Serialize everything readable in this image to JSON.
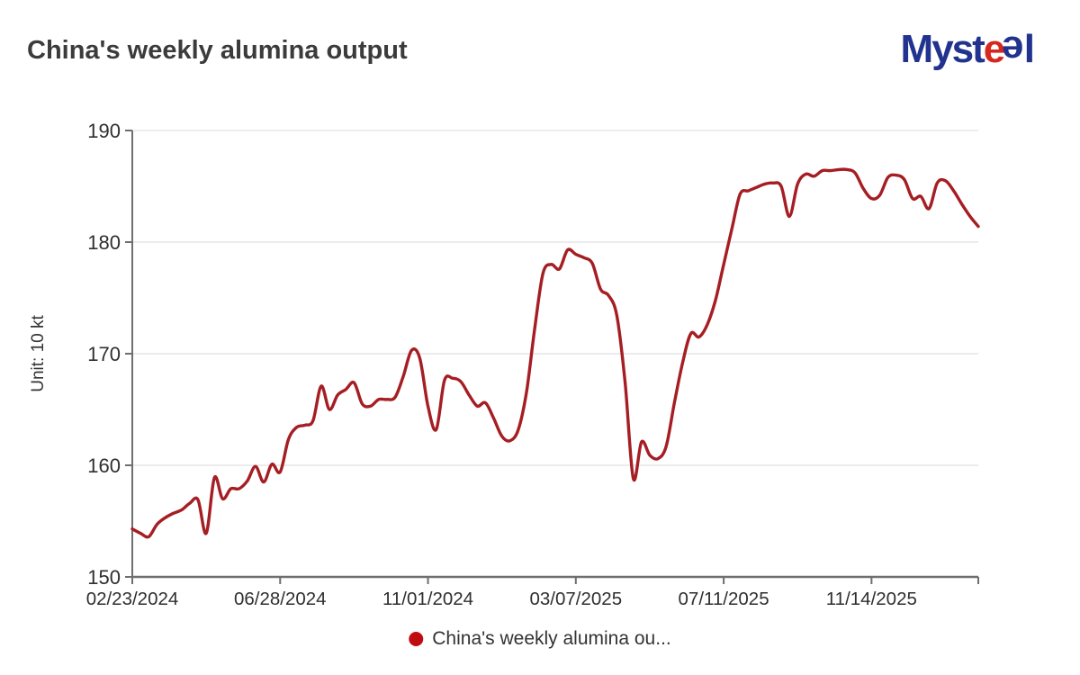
{
  "header": {
    "logo": {
      "p1": "Myst",
      "p2": "e",
      "p3": "e",
      "p4": "l",
      "blue": "#21338e",
      "red": "#d6281e"
    }
  },
  "legend": {
    "label": "China's weekly alumina ou..."
  },
  "chart_data": {
    "type": "line",
    "title": "China's weekly alumina output",
    "unit_label": "Unit: 10 kt",
    "series_name": "China's weekly alumina output",
    "line_color": "#a51e23",
    "legend_dot_color": "#c00c10",
    "grid_color": "#e5e5e8",
    "axis_color": "#6e6e6e",
    "tick_text_color": "#2f2f2f",
    "ylim": [
      150,
      190
    ],
    "y_ticks": [
      150,
      160,
      170,
      180,
      190
    ],
    "x_tick_indices": [
      0,
      18,
      36,
      54,
      72,
      90
    ],
    "x_tick_labels": [
      "02/23/2024",
      "06/28/2024",
      "11/01/2024",
      "03/07/2025",
      "07/11/2025",
      "11/14/2025"
    ],
    "grid_on": true,
    "legend_position": "bottom-center",
    "dates": [
      "02/23/2024",
      "03/01/2024",
      "03/08/2024",
      "03/15/2024",
      "03/22/2024",
      "03/29/2024",
      "04/05/2024",
      "04/12/2024",
      "04/19/2024",
      "04/26/2024",
      "05/03/2024",
      "05/10/2024",
      "05/17/2024",
      "05/24/2024",
      "05/31/2024",
      "06/07/2024",
      "06/14/2024",
      "06/21/2024",
      "06/28/2024",
      "07/05/2024",
      "07/12/2024",
      "07/19/2024",
      "07/26/2024",
      "08/02/2024",
      "08/09/2024",
      "08/16/2024",
      "08/23/2024",
      "08/30/2024",
      "09/06/2024",
      "09/13/2024",
      "09/20/2024",
      "09/27/2024",
      "10/04/2024",
      "10/11/2024",
      "10/18/2024",
      "10/25/2024",
      "11/01/2024",
      "11/08/2024",
      "11/15/2024",
      "11/22/2024",
      "11/29/2024",
      "12/06/2024",
      "12/13/2024",
      "12/20/2024",
      "12/27/2024",
      "01/03/2025",
      "01/10/2025",
      "01/17/2025",
      "01/24/2025",
      "01/31/2025",
      "02/07/2025",
      "02/14/2025",
      "02/21/2025",
      "02/28/2025",
      "03/07/2025",
      "03/14/2025",
      "03/21/2025",
      "03/28/2025",
      "04/04/2025",
      "04/11/2025",
      "04/18/2025",
      "04/25/2025",
      "05/02/2025",
      "05/09/2025",
      "05/16/2025",
      "05/23/2025",
      "05/30/2025",
      "06/06/2025",
      "06/13/2025",
      "06/20/2025",
      "06/27/2025",
      "07/04/2025",
      "07/11/2025",
      "07/18/2025",
      "07/25/2025",
      "08/01/2025",
      "08/08/2025",
      "08/15/2025",
      "08/22/2025",
      "08/29/2025",
      "09/05/2025",
      "09/12/2025",
      "09/19/2025",
      "09/26/2025",
      "10/03/2025",
      "10/10/2025",
      "10/17/2025",
      "10/24/2025",
      "10/31/2025",
      "11/07/2025",
      "11/14/2025",
      "11/21/2025",
      "11/28/2025",
      "12/05/2025",
      "12/12/2025",
      "12/19/2025",
      "12/26/2025",
      "01/02/2026",
      "01/09/2026",
      "01/16/2026",
      "01/23/2026",
      "01/30/2026",
      "02/06/2026",
      "02/13/2026"
    ],
    "values": [
      154.3,
      153.9,
      153.6,
      154.7,
      155.3,
      155.7,
      156.0,
      156.6,
      156.9,
      153.9,
      158.9,
      157.0,
      157.9,
      157.9,
      158.6,
      159.9,
      158.5,
      160.1,
      159.4,
      162.3,
      163.4,
      163.6,
      164.0,
      167.1,
      165.0,
      166.3,
      166.8,
      167.4,
      165.5,
      165.3,
      165.9,
      165.9,
      166.1,
      168.0,
      170.3,
      169.6,
      165.3,
      163.2,
      167.6,
      167.8,
      167.5,
      166.3,
      165.3,
      165.6,
      164.2,
      162.6,
      162.2,
      163.2,
      166.6,
      172.3,
      177.2,
      178.0,
      177.6,
      179.3,
      178.9,
      178.6,
      178.1,
      175.8,
      175.2,
      173.4,
      167.4,
      158.8,
      162.1,
      160.9,
      160.6,
      161.7,
      165.6,
      169.2,
      171.8,
      171.5,
      172.6,
      174.8,
      178.0,
      181.2,
      184.3,
      184.6,
      184.9,
      185.2,
      185.3,
      185.0,
      182.3,
      185.2,
      186.1,
      185.9,
      186.4,
      186.4,
      186.5,
      186.5,
      186.2,
      184.8,
      183.9,
      184.2,
      185.8,
      186.0,
      185.6,
      183.9,
      184.1,
      183.0,
      185.3,
      185.5,
      184.6,
      183.4,
      182.3,
      181.4
    ]
  }
}
